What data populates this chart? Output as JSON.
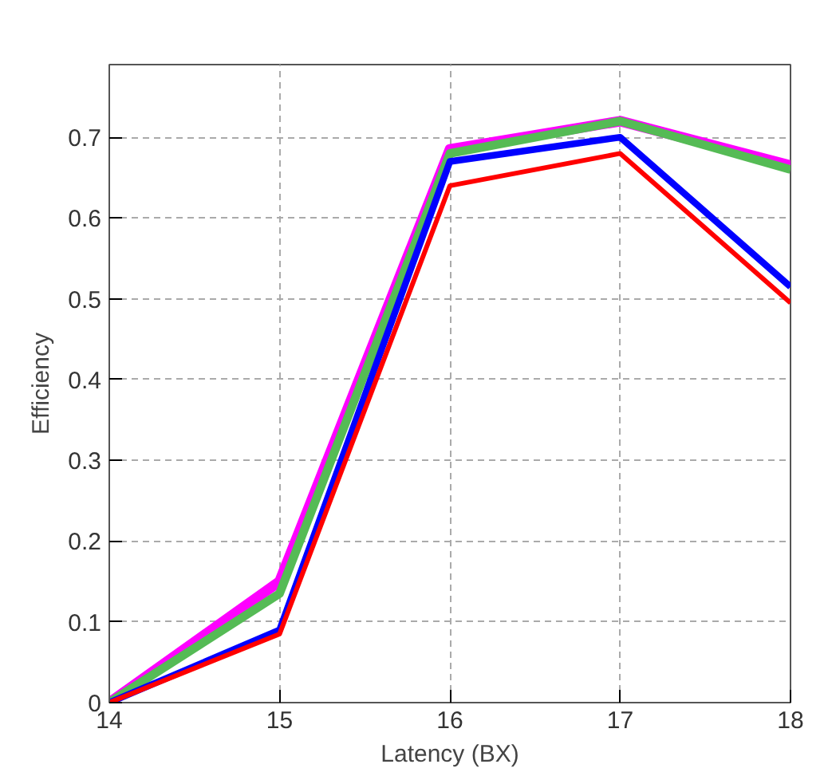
{
  "chart_data": {
    "type": "line",
    "xlabel": "Latency (BX)",
    "ylabel": "Efficiency",
    "x": [
      14,
      15,
      16,
      17,
      18
    ],
    "series": [
      {
        "color": "#ff00ff",
        "values": [
          0,
          0.15,
          0.685,
          0.72,
          0.665
        ]
      },
      {
        "color": "#55bb55",
        "values": [
          0,
          0.135,
          0.68,
          0.72,
          0.66
        ]
      },
      {
        "color": "#0000ff",
        "values": [
          0,
          0.09,
          0.67,
          0.7,
          0.515
        ]
      },
      {
        "color": "#ff0000",
        "values": [
          0,
          0.085,
          0.64,
          0.68,
          0.495
        ]
      }
    ],
    "xlim": [
      14,
      18
    ],
    "ylim": [
      0,
      0.79
    ],
    "xticks": [
      14,
      15,
      16,
      17,
      18
    ],
    "yticks": [
      0,
      0.1,
      0.2,
      0.3,
      0.4,
      0.5,
      0.6,
      0.7
    ],
    "grid": true,
    "line_style": "solid",
    "marker": "none"
  }
}
